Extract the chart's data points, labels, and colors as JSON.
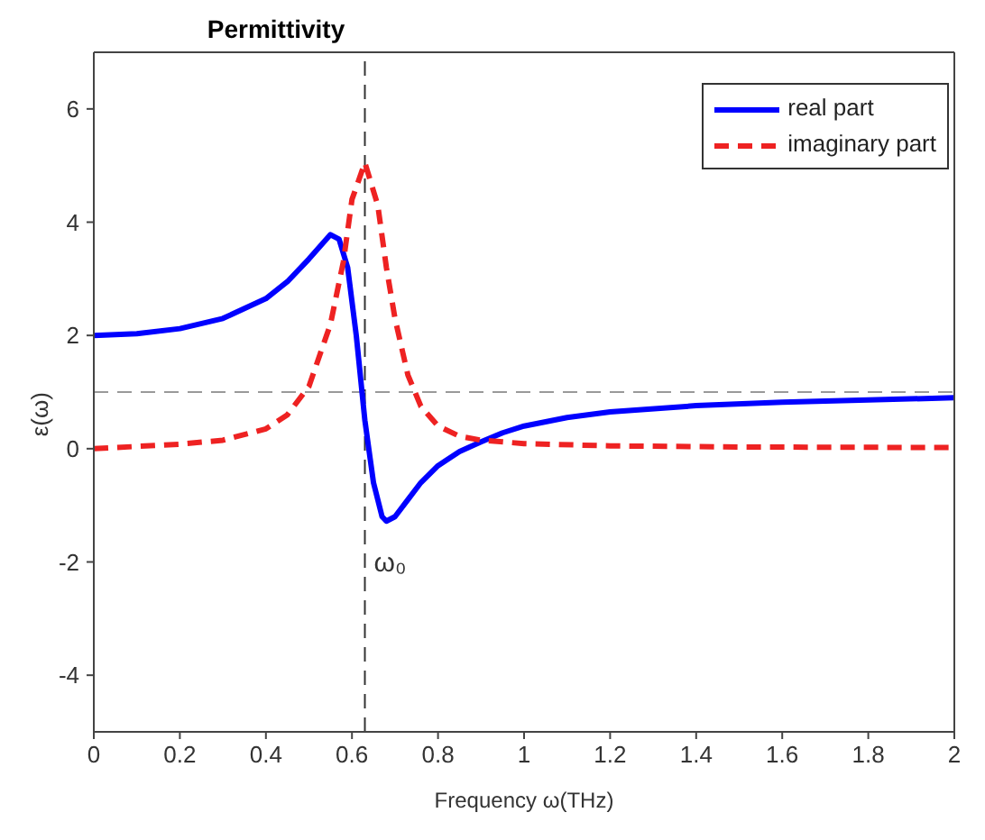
{
  "chart_data": {
    "type": "line",
    "title": "Permittivity",
    "xlabel": "Frequency ω(THz)",
    "ylabel": "ε(ω)",
    "xlim": [
      0,
      2
    ],
    "xticks": [
      0,
      0.2,
      0.4,
      0.6,
      0.8,
      1,
      1.2,
      1.4,
      1.6,
      1.8,
      2
    ],
    "ylim": [
      -5,
      7
    ],
    "yticks": [
      -4,
      -2,
      0,
      2,
      4,
      6
    ],
    "grid": false,
    "legend": "top right",
    "marker": "none",
    "series": [
      {
        "name": "real part",
        "color": "#0000ff",
        "line_style": "solid",
        "x": [
          0,
          0.1,
          0.2,
          0.3,
          0.4,
          0.45,
          0.5,
          0.55,
          0.57,
          0.59,
          0.61,
          0.63,
          0.65,
          0.67,
          0.68,
          0.7,
          0.73,
          0.76,
          0.8,
          0.85,
          0.9,
          0.95,
          1,
          1.1,
          1.2,
          1.4,
          1.6,
          1.8,
          2
        ],
        "values": [
          2,
          2.03,
          2.12,
          2.3,
          2.65,
          2.95,
          3.35,
          3.78,
          3.7,
          3.2,
          2,
          0.5,
          -0.6,
          -1.2,
          -1.28,
          -1.2,
          -0.9,
          -0.6,
          -0.3,
          -0.05,
          0.12,
          0.28,
          0.4,
          0.55,
          0.65,
          0.76,
          0.82,
          0.86,
          0.9
        ]
      },
      {
        "name": "imaginary part",
        "color": "#ee2222",
        "line_style": "dashed",
        "x": [
          0,
          0.2,
          0.3,
          0.4,
          0.45,
          0.5,
          0.55,
          0.58,
          0.6,
          0.63,
          0.66,
          0.68,
          0.7,
          0.73,
          0.76,
          0.8,
          0.85,
          0.9,
          1,
          1.2,
          1.5,
          2
        ],
        "values": [
          0,
          0.08,
          0.15,
          0.35,
          0.6,
          1.1,
          2.2,
          3.3,
          4.4,
          5.05,
          4.3,
          3.2,
          2.3,
          1.3,
          0.75,
          0.4,
          0.22,
          0.15,
          0.09,
          0.05,
          0.03,
          0.02
        ]
      }
    ],
    "ref_lines": [
      {
        "axis": "x",
        "value": 0.63,
        "color": "#333333",
        "line_style": "dashed"
      },
      {
        "axis": "y",
        "value": 1,
        "color": "#999999",
        "line_style": "dashed"
      }
    ],
    "annotations": [
      {
        "text": "ω₀",
        "x": 0.63,
        "y": -2
      }
    ]
  }
}
